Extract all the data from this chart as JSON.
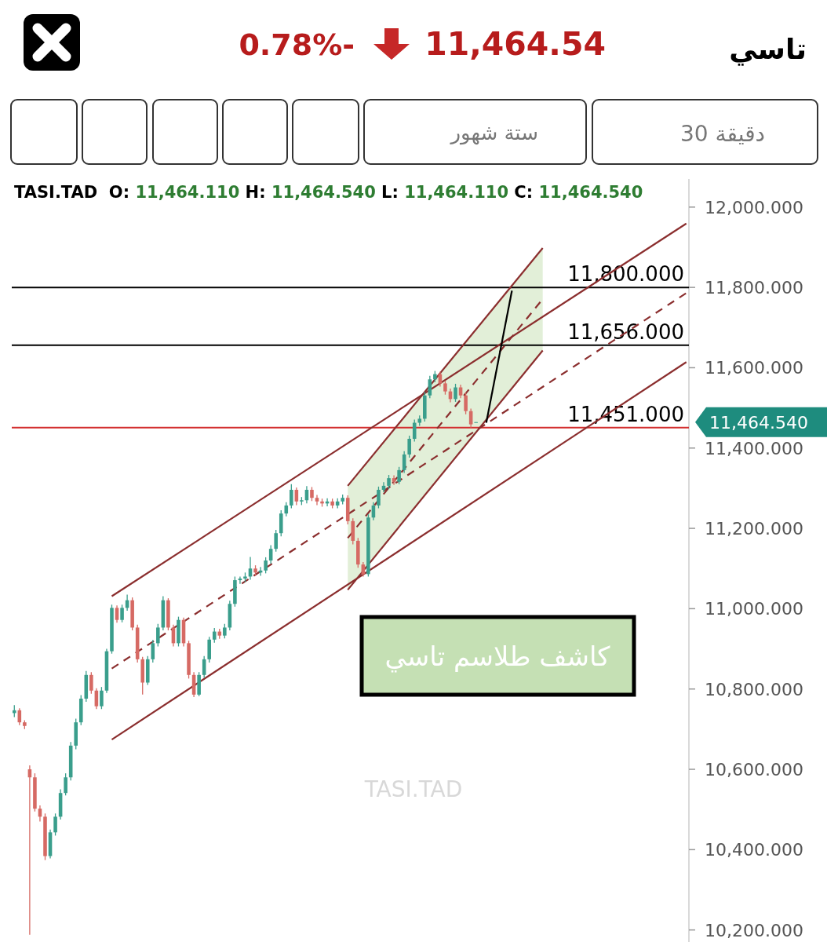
{
  "chart_data": {
    "type": "candlestick",
    "title": "تاسي",
    "categories": [
      null,
      null,
      null,
      null,
      null,
      null,
      null,
      null,
      null,
      null,
      null,
      null,
      null,
      null,
      null,
      null,
      null,
      null,
      null,
      null,
      null,
      null,
      null,
      null,
      null,
      null,
      null,
      null,
      null,
      null,
      null,
      null,
      null,
      null,
      null,
      null,
      null,
      null,
      null,
      null,
      null,
      null,
      null,
      null,
      null,
      null,
      null,
      null,
      null,
      null,
      null,
      null,
      null,
      null,
      null,
      null,
      null,
      null,
      null,
      null,
      null,
      null,
      null,
      null,
      null,
      null,
      null,
      null,
      null,
      null,
      null,
      null,
      null,
      null,
      null,
      null,
      null,
      null,
      null,
      null,
      null,
      null,
      null,
      null,
      null,
      null,
      null,
      null,
      null,
      null,
      null,
      null,
      null,
      null,
      null,
      null,
      null,
      null,
      null,
      null,
      null,
      null,
      null,
      null,
      null,
      null,
      null,
      null,
      null,
      null,
      null,
      null,
      null,
      null,
      null,
      null,
      null,
      null,
      null,
      null,
      null,
      null,
      null,
      null,
      null,
      null,
      null,
      null,
      null,
      null,
      null,
      null
    ],
    "ohlc": [
      [
        10740,
        10760,
        10730,
        10747
      ],
      [
        10747,
        10752,
        10710,
        10717
      ],
      [
        10717,
        10722,
        10700,
        10708
      ],
      [
        10600,
        10610,
        10188,
        10580
      ],
      [
        10580,
        10590,
        10495,
        10502
      ],
      [
        10502,
        10510,
        10470,
        10482
      ],
      [
        10482,
        10490,
        10374,
        10384
      ],
      [
        10384,
        10450,
        10378,
        10443
      ],
      [
        10443,
        10490,
        10435,
        10482
      ],
      [
        10482,
        10550,
        10475,
        10541
      ],
      [
        10541,
        10590,
        10535,
        10580
      ],
      [
        10580,
        10668,
        10572,
        10659
      ],
      [
        10659,
        10726,
        10650,
        10717
      ],
      [
        10717,
        10785,
        10710,
        10776
      ],
      [
        10776,
        10845,
        10768,
        10835
      ],
      [
        10835,
        10842,
        10788,
        10796
      ],
      [
        10796,
        10802,
        10750,
        10757
      ],
      [
        10757,
        10805,
        10750,
        10796
      ],
      [
        10796,
        10900,
        10790,
        10894
      ],
      [
        10894,
        11010,
        10888,
        11002
      ],
      [
        11002,
        11008,
        10965,
        10972
      ],
      [
        10972,
        11010,
        10966,
        11002
      ],
      [
        11002,
        11035,
        10995,
        11021
      ],
      [
        11021,
        11028,
        10946,
        10953
      ],
      [
        10953,
        10960,
        10866,
        10874
      ],
      [
        10874,
        10880,
        10786,
        10816
      ],
      [
        10816,
        10882,
        10810,
        10874
      ],
      [
        10874,
        10922,
        10866,
        10914
      ],
      [
        10914,
        10962,
        10906,
        10953
      ],
      [
        10953,
        11031,
        10946,
        11021
      ],
      [
        11021,
        11026,
        10946,
        10953
      ],
      [
        10953,
        10960,
        10906,
        10914
      ],
      [
        10914,
        10980,
        10906,
        10972
      ],
      [
        10972,
        10978,
        10906,
        10914
      ],
      [
        10914,
        10920,
        10826,
        10835
      ],
      [
        10835,
        10842,
        10780,
        10786
      ],
      [
        10786,
        10842,
        10782,
        10835
      ],
      [
        10835,
        10882,
        10828,
        10874
      ],
      [
        10874,
        10930,
        10866,
        10923
      ],
      [
        10923,
        10952,
        10915,
        10943
      ],
      [
        10943,
        10950,
        10925,
        10933
      ],
      [
        10933,
        10962,
        10926,
        10953
      ],
      [
        10953,
        11020,
        10946,
        11012
      ],
      [
        11012,
        11080,
        11005,
        11071
      ],
      [
        11071,
        11080,
        11062,
        11075
      ],
      [
        11075,
        11090,
        11066,
        11080
      ],
      [
        11080,
        11129,
        11072,
        11100
      ],
      [
        11100,
        11108,
        11082,
        11090
      ],
      [
        11090,
        11104,
        11082,
        11095
      ],
      [
        11095,
        11128,
        11088,
        11120
      ],
      [
        11120,
        11158,
        11112,
        11149
      ],
      [
        11149,
        11196,
        11142,
        11188
      ],
      [
        11188,
        11245,
        11180,
        11237
      ],
      [
        11237,
        11265,
        11230,
        11257
      ],
      [
        11257,
        11310,
        11250,
        11296
      ],
      [
        11296,
        11302,
        11258,
        11267
      ],
      [
        11267,
        11278,
        11258,
        11270
      ],
      [
        11270,
        11305,
        11262,
        11296
      ],
      [
        11296,
        11303,
        11268,
        11276
      ],
      [
        11276,
        11283,
        11258,
        11267
      ],
      [
        11267,
        11274,
        11254,
        11262
      ],
      [
        11262,
        11275,
        11255,
        11267
      ],
      [
        11267,
        11274,
        11250,
        11257
      ],
      [
        11257,
        11275,
        11250,
        11267
      ],
      [
        11267,
        11284,
        11260,
        11276
      ],
      [
        11276,
        11282,
        11210,
        11218
      ],
      [
        11218,
        11225,
        11160,
        11169
      ],
      [
        11169,
        11176,
        11102,
        11110
      ],
      [
        11110,
        11116,
        11080,
        11086
      ],
      [
        11086,
        11235,
        11080,
        11227
      ],
      [
        11227,
        11265,
        11220,
        11257
      ],
      [
        11257,
        11304,
        11250,
        11296
      ],
      [
        11296,
        11315,
        11290,
        11306
      ],
      [
        11306,
        11333,
        11298,
        11325
      ],
      [
        11325,
        11332,
        11308,
        11316
      ],
      [
        11316,
        11353,
        11310,
        11345
      ],
      [
        11345,
        11392,
        11338,
        11384
      ],
      [
        11384,
        11431,
        11376,
        11423
      ],
      [
        11423,
        11471,
        11416,
        11463
      ],
      [
        11463,
        11481,
        11455,
        11473
      ],
      [
        11473,
        11540,
        11466,
        11531
      ],
      [
        11531,
        11580,
        11524,
        11571
      ],
      [
        11571,
        11592,
        11564,
        11584
      ],
      [
        11584,
        11590,
        11553,
        11561
      ],
      [
        11561,
        11568,
        11533,
        11541
      ],
      [
        11541,
        11548,
        11514,
        11522
      ],
      [
        11522,
        11560,
        11515,
        11551
      ],
      [
        11551,
        11558,
        11524,
        11531
      ],
      [
        11531,
        11538,
        11484,
        11492
      ],
      [
        11492,
        11498,
        11451,
        11459
      ],
      [
        11464.11,
        11464.54,
        11464.11,
        11464.54
      ],
      null,
      null,
      null,
      null,
      null,
      null,
      null,
      null,
      null,
      null,
      null,
      null,
      null,
      null,
      null,
      null,
      null,
      null,
      null,
      null,
      null,
      null,
      null,
      null,
      null,
      null,
      null,
      null,
      null,
      null,
      null,
      null,
      null,
      null,
      null,
      null,
      null,
      null,
      null,
      null,
      null
    ],
    "series": [
      {
        "type": "line",
        "values": [
          null,
          null,
          null,
          null,
          null,
          null,
          null,
          null,
          null,
          null,
          null,
          null,
          null,
          null,
          null,
          null,
          null,
          null,
          null,
          11031,
          null,
          null,
          null,
          null,
          null,
          null,
          null,
          null,
          null,
          null,
          null,
          null,
          null,
          null,
          null,
          null,
          null,
          null,
          null,
          null,
          null,
          null,
          null,
          null,
          null,
          null,
          null,
          null,
          null,
          null,
          null,
          null,
          null,
          null,
          null,
          null,
          null,
          null,
          null,
          null,
          null,
          null,
          null,
          null,
          null,
          null,
          null,
          null,
          null,
          null,
          null,
          null,
          null,
          null,
          null,
          null,
          null,
          null,
          null,
          null,
          null,
          null,
          null,
          null,
          null,
          null,
          null,
          null,
          null,
          null,
          null,
          null,
          null,
          null,
          null,
          null,
          null,
          null,
          null,
          null,
          null,
          null,
          null,
          null,
          null,
          null,
          null,
          null,
          null,
          null,
          null,
          null,
          null,
          null,
          null,
          null,
          null,
          null,
          null,
          null,
          null,
          null,
          null,
          null,
          null,
          null,
          null,
          null,
          null,
          null,
          null,
          11959
        ],
        "color": "#8b2e2e",
        "line_style": "solid"
      },
      {
        "type": "line",
        "values": [
          null,
          null,
          null,
          null,
          null,
          null,
          null,
          null,
          null,
          null,
          null,
          null,
          null,
          null,
          null,
          null,
          null,
          null,
          null,
          10674,
          null,
          null,
          null,
          null,
          null,
          null,
          null,
          null,
          null,
          null,
          null,
          null,
          null,
          null,
          null,
          null,
          null,
          null,
          null,
          null,
          null,
          null,
          null,
          null,
          null,
          null,
          null,
          null,
          null,
          null,
          null,
          null,
          null,
          null,
          null,
          null,
          null,
          null,
          null,
          null,
          null,
          null,
          null,
          null,
          null,
          null,
          null,
          null,
          null,
          null,
          null,
          null,
          null,
          null,
          null,
          null,
          null,
          null,
          null,
          null,
          null,
          null,
          null,
          null,
          null,
          null,
          null,
          null,
          null,
          null,
          null,
          null,
          null,
          null,
          null,
          null,
          null,
          null,
          null,
          null,
          null,
          null,
          null,
          null,
          null,
          null,
          null,
          null,
          null,
          null,
          null,
          null,
          null,
          null,
          null,
          null,
          null,
          null,
          null,
          null,
          null,
          null,
          null,
          null,
          null,
          null,
          null,
          null,
          null,
          null,
          null,
          11614
        ],
        "color": "#8b2e2e",
        "line_style": "solid"
      },
      {
        "type": "line",
        "values": [
          null,
          null,
          null,
          null,
          null,
          null,
          null,
          null,
          null,
          null,
          null,
          null,
          null,
          null,
          null,
          null,
          null,
          null,
          null,
          10851,
          null,
          null,
          null,
          null,
          null,
          null,
          null,
          null,
          null,
          null,
          null,
          null,
          null,
          null,
          null,
          null,
          null,
          null,
          null,
          null,
          null,
          null,
          null,
          null,
          null,
          null,
          null,
          null,
          null,
          null,
          null,
          null,
          null,
          null,
          null,
          null,
          null,
          null,
          null,
          null,
          null,
          null,
          null,
          null,
          null,
          null,
          null,
          null,
          null,
          null,
          null,
          null,
          null,
          null,
          null,
          null,
          null,
          null,
          null,
          null,
          null,
          null,
          null,
          null,
          null,
          null,
          null,
          null,
          null,
          null,
          null,
          null,
          null,
          null,
          null,
          null,
          null,
          null,
          null,
          null,
          null,
          null,
          null,
          null,
          null,
          null,
          null,
          null,
          null,
          null,
          null,
          null,
          null,
          null,
          null,
          null,
          null,
          null,
          null,
          null,
          null,
          null,
          null,
          null,
          null,
          null,
          null,
          null,
          null,
          null,
          null,
          11786
        ],
        "color": "#8b2e2e",
        "line_style": "dashed"
      },
      {
        "type": "line",
        "values": [
          null,
          null,
          null,
          null,
          null,
          null,
          null,
          null,
          null,
          null,
          null,
          null,
          null,
          null,
          null,
          null,
          null,
          null,
          null,
          null,
          null,
          null,
          null,
          null,
          null,
          null,
          null,
          null,
          null,
          null,
          null,
          null,
          null,
          null,
          null,
          null,
          null,
          null,
          null,
          null,
          null,
          null,
          null,
          null,
          null,
          null,
          null,
          null,
          null,
          null,
          null,
          null,
          null,
          null,
          null,
          null,
          null,
          null,
          null,
          null,
          null,
          null,
          null,
          null,
          null,
          11306,
          null,
          null,
          null,
          null,
          null,
          null,
          null,
          null,
          null,
          null,
          null,
          null,
          null,
          null,
          null,
          null,
          null,
          null,
          null,
          null,
          null,
          null,
          null,
          null,
          null,
          null,
          null,
          null,
          null,
          null,
          null,
          null,
          null,
          null,
          null,
          null,
          null,
          11898,
          null,
          null,
          null,
          null,
          null,
          null,
          null,
          null,
          null,
          null,
          null,
          null,
          null,
          null,
          null,
          null,
          null,
          null,
          null,
          null,
          null,
          null,
          null,
          null,
          null,
          null,
          null,
          null
        ],
        "color": "#8b2e2e",
        "line_style": "solid"
      },
      {
        "type": "line",
        "values": [
          null,
          null,
          null,
          null,
          null,
          null,
          null,
          null,
          null,
          null,
          null,
          null,
          null,
          null,
          null,
          null,
          null,
          null,
          null,
          null,
          null,
          null,
          null,
          null,
          null,
          null,
          null,
          null,
          null,
          null,
          null,
          null,
          null,
          null,
          null,
          null,
          null,
          null,
          null,
          null,
          null,
          null,
          null,
          null,
          null,
          null,
          null,
          null,
          null,
          null,
          null,
          null,
          null,
          null,
          null,
          null,
          null,
          null,
          null,
          null,
          null,
          null,
          null,
          null,
          null,
          11047,
          null,
          null,
          null,
          null,
          null,
          null,
          null,
          null,
          null,
          null,
          null,
          null,
          null,
          null,
          null,
          null,
          null,
          null,
          null,
          null,
          null,
          null,
          null,
          null,
          null,
          null,
          null,
          null,
          null,
          null,
          null,
          null,
          null,
          null,
          null,
          null,
          null,
          11643,
          null,
          null,
          null,
          null,
          null,
          null,
          null,
          null,
          null,
          null,
          null,
          null,
          null,
          null,
          null,
          null,
          null,
          null,
          null,
          null,
          null,
          null,
          null,
          null,
          null,
          null,
          null,
          null
        ],
        "color": "#8b2e2e",
        "line_style": "solid"
      },
      {
        "type": "line",
        "values": [
          null,
          null,
          null,
          null,
          null,
          null,
          null,
          null,
          null,
          null,
          null,
          null,
          null,
          null,
          null,
          null,
          null,
          null,
          null,
          null,
          null,
          null,
          null,
          null,
          null,
          null,
          null,
          null,
          null,
          null,
          null,
          null,
          null,
          null,
          null,
          null,
          null,
          null,
          null,
          null,
          null,
          null,
          null,
          null,
          null,
          null,
          null,
          null,
          null,
          null,
          null,
          null,
          null,
          null,
          null,
          null,
          null,
          null,
          null,
          null,
          null,
          null,
          null,
          null,
          null,
          11176,
          null,
          null,
          null,
          null,
          null,
          null,
          null,
          null,
          null,
          null,
          null,
          null,
          null,
          null,
          null,
          null,
          null,
          null,
          null,
          null,
          null,
          null,
          null,
          null,
          null,
          null,
          null,
          null,
          null,
          null,
          null,
          null,
          null,
          null,
          null,
          null,
          null,
          11771,
          null,
          null,
          null,
          null,
          null,
          null,
          null,
          null,
          null,
          null,
          null,
          null,
          null,
          null,
          null,
          null,
          null,
          null,
          null,
          null,
          null,
          null,
          null,
          null,
          null,
          null,
          null,
          null
        ],
        "lower": [
          null,
          null,
          null,
          null,
          null,
          null,
          null,
          null,
          null,
          null,
          null,
          null,
          null,
          null,
          null,
          null,
          null,
          null,
          null,
          null,
          null,
          null,
          null,
          null,
          null,
          null,
          null,
          null,
          null,
          null,
          null,
          null,
          null,
          null,
          null,
          null,
          null,
          null,
          null,
          null,
          null,
          null,
          null,
          null,
          null,
          null,
          null,
          null,
          null,
          null,
          null,
          null,
          null,
          null,
          null,
          null,
          null,
          null,
          null,
          null,
          null,
          null,
          null,
          null,
          null,
          11047,
          null,
          null,
          null,
          null,
          null,
          null,
          null,
          null,
          null,
          null,
          null,
          null,
          null,
          null,
          null,
          null,
          null,
          null,
          null,
          null,
          null,
          null,
          null,
          null,
          null,
          null,
          null,
          null,
          null,
          null,
          null,
          null,
          null,
          null,
          null,
          null,
          null,
          11643,
          null,
          null,
          null,
          null,
          null,
          null,
          null,
          null,
          null,
          null,
          null,
          null,
          null,
          null,
          null,
          null,
          null,
          null,
          null,
          null,
          null,
          null,
          null,
          null,
          null,
          null,
          null,
          null
        ],
        "upper": [
          null,
          null,
          null,
          null,
          null,
          null,
          null,
          null,
          null,
          null,
          null,
          null,
          null,
          null,
          null,
          null,
          null,
          null,
          null,
          null,
          null,
          null,
          null,
          null,
          null,
          null,
          null,
          null,
          null,
          null,
          null,
          null,
          null,
          null,
          null,
          null,
          null,
          null,
          null,
          null,
          null,
          null,
          null,
          null,
          null,
          null,
          null,
          null,
          null,
          null,
          null,
          null,
          null,
          null,
          null,
          null,
          null,
          null,
          null,
          null,
          null,
          null,
          null,
          null,
          null,
          11306,
          null,
          null,
          null,
          null,
          null,
          null,
          null,
          null,
          null,
          null,
          null,
          null,
          null,
          null,
          null,
          null,
          null,
          null,
          null,
          null,
          null,
          null,
          null,
          null,
          null,
          null,
          null,
          null,
          null,
          null,
          null,
          null,
          null,
          null,
          null,
          null,
          null,
          11898,
          null,
          null,
          null,
          null,
          null,
          null,
          null,
          null,
          null,
          null,
          null,
          null,
          null,
          null,
          null,
          null,
          null,
          null,
          null,
          null,
          null,
          null,
          null,
          null,
          null,
          null,
          null,
          null
        ],
        "color": "#8b2e2e",
        "line_style": "dashed"
      },
      {
        "type": "line",
        "values": [
          null,
          null,
          null,
          null,
          null,
          null,
          null,
          null,
          null,
          null,
          null,
          null,
          null,
          null,
          null,
          null,
          null,
          null,
          null,
          null,
          null,
          null,
          null,
          null,
          null,
          null,
          null,
          null,
          null,
          null,
          null,
          null,
          null,
          null,
          null,
          null,
          null,
          null,
          null,
          null,
          null,
          null,
          null,
          null,
          null,
          null,
          null,
          null,
          null,
          null,
          null,
          null,
          null,
          null,
          null,
          null,
          null,
          null,
          null,
          null,
          null,
          null,
          null,
          null,
          null,
          null,
          null,
          null,
          null,
          null,
          null,
          null,
          null,
          null,
          null,
          null,
          null,
          null,
          null,
          null,
          null,
          null,
          null,
          null,
          null,
          null,
          null,
          null,
          null,
          null,
          null,
          null,
          11463,
          null,
          null,
          null,
          null,
          11792,
          null,
          null,
          null,
          null,
          null,
          null,
          null,
          null,
          null,
          null,
          null,
          null,
          null,
          null,
          null,
          null,
          null,
          null,
          null,
          null,
          null,
          null,
          null,
          null,
          null,
          null,
          null,
          null,
          null,
          null,
          null,
          null,
          null,
          null
        ],
        "color": "#000000",
        "line_style": "solid"
      }
    ],
    "ref_lines": [
      {
        "axis": "y",
        "value": 11800,
        "label": "11,800.000",
        "color": "#000000"
      },
      {
        "axis": "y",
        "value": 11656,
        "label": "11,656.000",
        "color": "#000000"
      },
      {
        "axis": "y",
        "value": 11451,
        "label": "11,451.000",
        "color": "#d32f2f"
      }
    ],
    "ylim": [
      10170,
      12070
    ],
    "yticks": [
      {
        "value": 10200,
        "label": "10,200.000"
      },
      {
        "value": 10400,
        "label": "10,400.000"
      },
      {
        "value": 10600,
        "label": "10,600.000"
      },
      {
        "value": 10800,
        "label": "10,800.000"
      },
      {
        "value": 11000,
        "label": "11,000.000"
      },
      {
        "value": 11200,
        "label": "11,200.000"
      },
      {
        "value": 11400,
        "label": "11,400.000"
      },
      {
        "value": 11600,
        "label": "11,600.000"
      },
      {
        "value": 11800,
        "label": "11,800.000"
      },
      {
        "value": 12000,
        "label": "12,000.000"
      }
    ],
    "tick_labels": "y",
    "annotations": [
      "11,464.54",
      "0.78%-",
      "ستة شهور",
      "30 دقيقة",
      "TASI.TAD  O: 11,464.110 H: 11,464.540 L: 11,464.110 C: 11,464.540",
      "TASI.TAD",
      "كاشف طلاسم تاسي",
      "11,464.540"
    ]
  }
}
